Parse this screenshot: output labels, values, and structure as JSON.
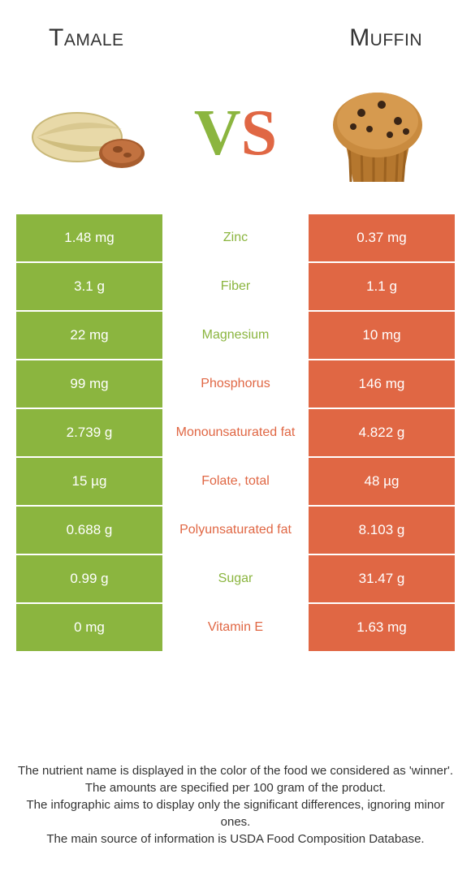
{
  "colors": {
    "left": "#8bb53f",
    "right": "#e06744",
    "vs_v": "#8bb53f",
    "vs_s": "#e06744"
  },
  "header": {
    "left_title": "Tamale",
    "right_title": "Muffin"
  },
  "rows": [
    {
      "left": "1.48 mg",
      "mid": "Zinc",
      "right": "0.37 mg",
      "winner": "left"
    },
    {
      "left": "3.1 g",
      "mid": "Fiber",
      "right": "1.1 g",
      "winner": "left"
    },
    {
      "left": "22 mg",
      "mid": "Magnesium",
      "right": "10 mg",
      "winner": "left"
    },
    {
      "left": "99 mg",
      "mid": "Phosphorus",
      "right": "146 mg",
      "winner": "right"
    },
    {
      "left": "2.739 g",
      "mid": "Monounsaturated fat",
      "right": "4.822 g",
      "winner": "right"
    },
    {
      "left": "15 µg",
      "mid": "Folate, total",
      "right": "48 µg",
      "winner": "right"
    },
    {
      "left": "0.688 g",
      "mid": "Polyunsaturated fat",
      "right": "8.103 g",
      "winner": "right"
    },
    {
      "left": "0.99 g",
      "mid": "Sugar",
      "right": "31.47 g",
      "winner": "left"
    },
    {
      "left": "0 mg",
      "mid": "Vitamin E",
      "right": "1.63 mg",
      "winner": "right"
    }
  ],
  "footer": {
    "line1": "The nutrient name is displayed in the color of the food we considered as 'winner'.",
    "line2": "The amounts are specified per 100 gram of the product.",
    "line3": "The infographic aims to display only the significant differences, ignoring minor ones.",
    "line4": "The main source of information is USDA Food Composition Database."
  }
}
